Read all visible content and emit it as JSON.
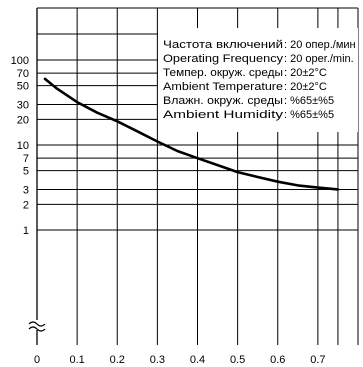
{
  "chart_data": {
    "type": "line",
    "title": "",
    "xlabel": "",
    "ylabel": "",
    "x_ticks": [
      "0",
      "0.1",
      "0.2",
      "0.3",
      "0.4",
      "0.5",
      "0.6",
      "0.7"
    ],
    "y_ticks": [
      "100",
      "70",
      "50",
      "30",
      "20",
      "10",
      "7",
      "5",
      "3",
      "2",
      "1"
    ],
    "y_scale": "log",
    "y_axis_break": true,
    "xlim": [
      0,
      0.8
    ],
    "grid": true,
    "legend": "none",
    "annotations": [
      {
        "label": "Частота включений",
        "value": ": 20 опер./мин"
      },
      {
        "label": "Operating Frequency",
        "value": ": 20 oper./min."
      },
      {
        "label": "Темпер. окруж. среды",
        "value": ": 20±2°C"
      },
      {
        "label": "Ambient Temperature",
        "value": ": 20±2°C"
      },
      {
        "label": "Влажн. окруж. среды",
        "value": ": %65±%5"
      },
      {
        "label": "Ambient Humidity",
        "value": ": %65±%5"
      }
    ],
    "series": [
      {
        "x": [
          0.02,
          0.05,
          0.1,
          0.15,
          0.2,
          0.25,
          0.3,
          0.35,
          0.4,
          0.45,
          0.5,
          0.55,
          0.6,
          0.65,
          0.7,
          0.75
        ],
        "y": [
          60,
          46,
          32,
          24,
          19,
          14.5,
          11,
          8.5,
          7,
          5.8,
          4.8,
          4.2,
          3.7,
          3.35,
          3.15,
          3.0
        ],
        "color": "#000000"
      }
    ]
  }
}
